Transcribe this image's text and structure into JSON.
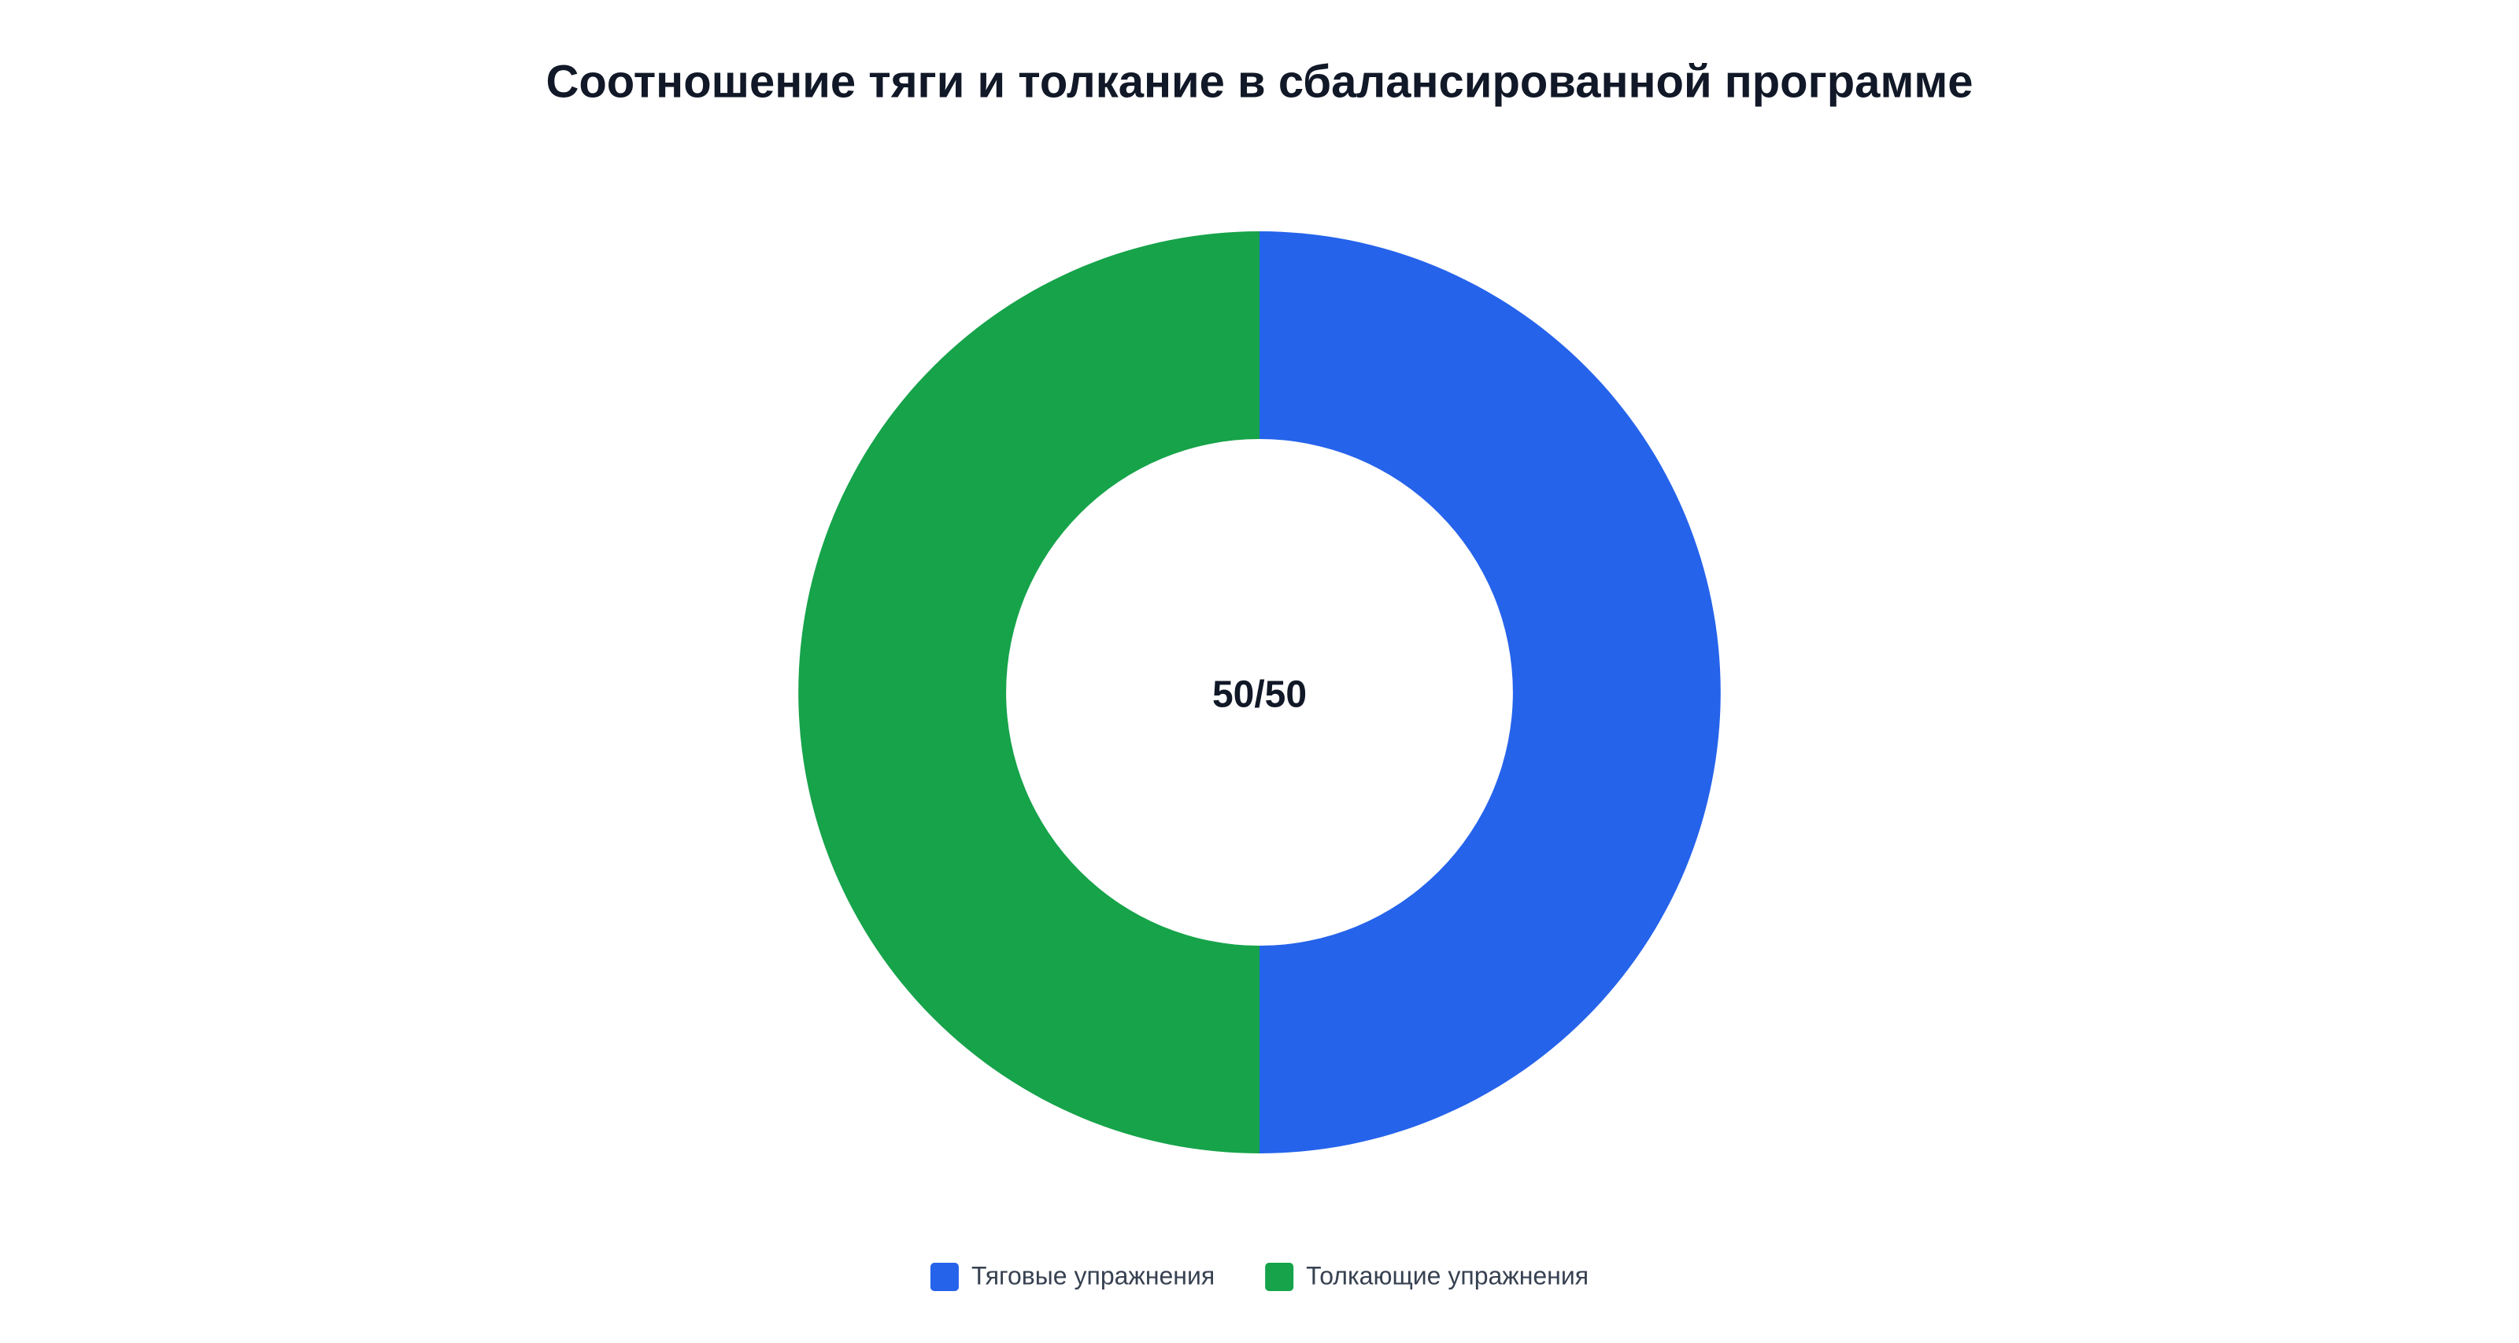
{
  "chart_data": {
    "type": "donut",
    "title": "Соотношение тяги и толкание в сбалансированной программе",
    "center_label": "50/50",
    "categories": [
      "Тяговые упражнения",
      "Толкающие упражнения"
    ],
    "values": [
      50,
      50
    ],
    "colors": [
      "#2563eb",
      "#16a34a"
    ],
    "legend": "bottom"
  }
}
